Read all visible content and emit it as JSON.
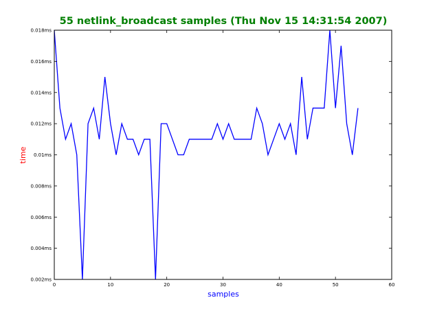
{
  "colors": {
    "title": "#007f00",
    "series": "#0000ff",
    "xlabel": "#0000ff",
    "ylabel": "#ff0000",
    "axes": "#000000",
    "background": "#ffffff"
  },
  "chart_data": {
    "type": "line",
    "title": "55 netlink_broadcast samples (Thu Nov 15 14:31:54 2007)",
    "xlabel": "samples",
    "ylabel": "time",
    "xlim": [
      0,
      60
    ],
    "ylim": [
      0.002,
      0.018
    ],
    "grid": false,
    "legend": "none",
    "xticks": [
      0,
      10,
      20,
      30,
      40,
      50,
      60
    ],
    "xtick_labels": [
      "0",
      "10",
      "20",
      "30",
      "40",
      "50",
      "60"
    ],
    "yticks": [
      0.002,
      0.004,
      0.006,
      0.008,
      0.01,
      0.012,
      0.014,
      0.016,
      0.018
    ],
    "ytick_labels": [
      "0.002ms",
      "0.004ms",
      "0.006ms",
      "0.008ms",
      "0.01ms",
      "0.012ms",
      "0.014ms",
      "0.016ms",
      "0.018ms"
    ],
    "series": [
      {
        "x": [
          0,
          1,
          2,
          3,
          4,
          5,
          6,
          7,
          8,
          9,
          10,
          11,
          12,
          13,
          14,
          15,
          16,
          17,
          18,
          19,
          20,
          21,
          22,
          23,
          24,
          25,
          26,
          27,
          28,
          29,
          30,
          31,
          32,
          33,
          34,
          35,
          36,
          37,
          38,
          39,
          40,
          41,
          42,
          43,
          44,
          45,
          46,
          47,
          48,
          49,
          50,
          51,
          52,
          53,
          54
        ],
        "values": [
          0.018,
          0.013,
          0.011,
          0.012,
          0.01,
          0.002,
          0.012,
          0.013,
          0.011,
          0.015,
          0.012,
          0.01,
          0.012,
          0.011,
          0.011,
          0.01,
          0.011,
          0.011,
          0.002,
          0.012,
          0.012,
          0.011,
          0.01,
          0.01,
          0.011,
          0.011,
          0.011,
          0.011,
          0.011,
          0.012,
          0.011,
          0.012,
          0.011,
          0.011,
          0.011,
          0.011,
          0.013,
          0.012,
          0.01,
          0.011,
          0.012,
          0.011,
          0.012,
          0.01,
          0.015,
          0.011,
          0.013,
          0.013,
          0.013,
          0.018,
          0.013,
          0.017,
          0.012,
          0.01,
          0.013
        ]
      }
    ]
  }
}
